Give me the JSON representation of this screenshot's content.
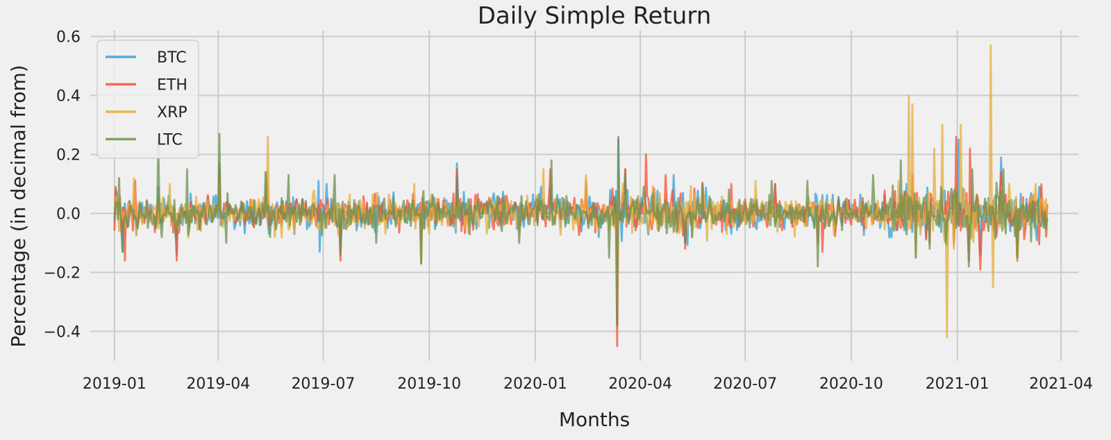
{
  "chart_data": {
    "type": "line",
    "title": "Daily Simple Return",
    "xlabel": "Months",
    "ylabel": "Percentage (in decimal from)",
    "xlim": [
      "2018-12-11",
      "2021-04-16"
    ],
    "ylim": [
      -0.5,
      0.62
    ],
    "x_ticks": [
      "2019-01",
      "2019-04",
      "2019-07",
      "2019-10",
      "2020-01",
      "2020-04",
      "2020-07",
      "2020-10",
      "2021-01",
      "2021-04"
    ],
    "y_ticks": [
      -0.4,
      -0.2,
      0.0,
      0.2,
      0.4,
      0.6
    ],
    "y_tick_labels": [
      "−0.4",
      "−0.2",
      "0.0",
      "0.2",
      "0.4",
      "0.6"
    ],
    "x_range": [
      "2019-01-01",
      "2021-03-20"
    ],
    "grid": true,
    "legend_position": "top-left",
    "series": [
      {
        "name": "BTC",
        "color": "#30a2da",
        "points": [
          [
            "2019-01-02",
            0.08
          ],
          [
            "2019-01-08",
            -0.13
          ],
          [
            "2019-02-08",
            0.09
          ],
          [
            "2019-02-24",
            -0.14
          ],
          [
            "2019-04-02",
            0.17
          ],
          [
            "2019-05-13",
            0.12
          ],
          [
            "2019-06-27",
            0.11
          ],
          [
            "2019-06-28",
            -0.13
          ],
          [
            "2019-07-04",
            0.1
          ],
          [
            "2019-07-16",
            -0.14
          ],
          [
            "2019-09-24",
            -0.16
          ],
          [
            "2019-10-25",
            0.17
          ],
          [
            "2020-01-06",
            0.09
          ],
          [
            "2020-01-14",
            0.09
          ],
          [
            "2020-03-12",
            -0.38
          ],
          [
            "2020-03-13",
            0.25
          ],
          [
            "2020-03-19",
            0.15
          ],
          [
            "2020-04-30",
            0.13
          ],
          [
            "2020-05-10",
            -0.1
          ],
          [
            "2020-07-27",
            0.1
          ],
          [
            "2020-11-18",
            0.1
          ],
          [
            "2021-01-02",
            0.25
          ],
          [
            "2021-01-21",
            -0.14
          ],
          [
            "2021-02-08",
            0.19
          ],
          [
            "2021-02-22",
            -0.16
          ],
          [
            "2021-03-13",
            0.09
          ]
        ]
      },
      {
        "name": "ETH",
        "color": "#fc4f30",
        "points": [
          [
            "2019-01-02",
            0.09
          ],
          [
            "2019-01-10",
            -0.16
          ],
          [
            "2019-01-19",
            0.11
          ],
          [
            "2019-02-24",
            -0.16
          ],
          [
            "2019-04-02",
            0.15
          ],
          [
            "2019-05-13",
            0.14
          ],
          [
            "2019-07-16",
            -0.16
          ],
          [
            "2019-09-24",
            -0.17
          ],
          [
            "2019-10-25",
            0.15
          ],
          [
            "2020-01-14",
            0.15
          ],
          [
            "2020-02-14",
            0.11
          ],
          [
            "2020-03-12",
            -0.45
          ],
          [
            "2020-03-19",
            0.15
          ],
          [
            "2020-04-06",
            0.2
          ],
          [
            "2020-04-23",
            0.13
          ],
          [
            "2020-05-10",
            -0.12
          ],
          [
            "2020-06-19",
            0.1
          ],
          [
            "2020-07-27",
            0.1
          ],
          [
            "2020-09-02",
            -0.1
          ],
          [
            "2020-09-06",
            -0.13
          ],
          [
            "2020-11-23",
            0.13
          ],
          [
            "2020-12-31",
            0.26
          ],
          [
            "2021-01-11",
            -0.16
          ],
          [
            "2021-01-12",
            0.22
          ],
          [
            "2021-01-21",
            -0.19
          ],
          [
            "2021-02-08",
            0.14
          ],
          [
            "2021-02-22",
            -0.16
          ]
        ]
      },
      {
        "name": "XRP",
        "color": "#e5ae38",
        "points": [
          [
            "2019-01-02",
            0.05
          ],
          [
            "2019-01-18",
            0.12
          ],
          [
            "2019-02-18",
            0.1
          ],
          [
            "2019-04-02",
            0.1
          ],
          [
            "2019-05-14",
            0.26
          ],
          [
            "2019-05-20",
            -0.08
          ],
          [
            "2019-06-26",
            -0.05
          ],
          [
            "2019-09-18",
            0.1
          ],
          [
            "2019-09-24",
            -0.17
          ],
          [
            "2020-01-08",
            0.15
          ],
          [
            "2020-02-14",
            0.13
          ],
          [
            "2020-03-12",
            -0.3
          ],
          [
            "2020-03-13",
            0.12
          ],
          [
            "2020-07-10",
            0.11
          ],
          [
            "2020-11-20",
            0.4
          ],
          [
            "2020-11-23",
            0.37
          ],
          [
            "2020-11-26",
            -0.15
          ],
          [
            "2020-12-12",
            0.22
          ],
          [
            "2020-12-19",
            0.3
          ],
          [
            "2020-12-23",
            -0.42
          ],
          [
            "2020-12-29",
            -0.12
          ],
          [
            "2021-01-04",
            0.3
          ],
          [
            "2021-01-30",
            0.57
          ],
          [
            "2021-02-01",
            -0.25
          ],
          [
            "2021-02-15",
            0.1
          ],
          [
            "2021-02-22",
            -0.16
          ]
        ]
      },
      {
        "name": "LTC",
        "color": "#6d904f",
        "points": [
          [
            "2019-01-02",
            0.04
          ],
          [
            "2019-01-05",
            0.12
          ],
          [
            "2019-01-08",
            -0.13
          ],
          [
            "2019-02-08",
            0.25
          ],
          [
            "2019-02-11",
            -0.08
          ],
          [
            "2019-03-05",
            0.15
          ],
          [
            "2019-04-02",
            0.27
          ],
          [
            "2019-04-08",
            -0.1
          ],
          [
            "2019-05-12",
            0.14
          ],
          [
            "2019-05-16",
            -0.08
          ],
          [
            "2019-06-01",
            0.13
          ],
          [
            "2019-07-11",
            0.13
          ],
          [
            "2019-07-16",
            -0.13
          ],
          [
            "2019-08-16",
            -0.1
          ],
          [
            "2019-09-24",
            -0.17
          ],
          [
            "2019-10-25",
            0.12
          ],
          [
            "2019-12-18",
            -0.1
          ],
          [
            "2020-01-15",
            0.18
          ],
          [
            "2020-03-05",
            -0.15
          ],
          [
            "2020-03-12",
            -0.38
          ],
          [
            "2020-03-13",
            0.26
          ],
          [
            "2020-03-19",
            0.13
          ],
          [
            "2020-05-10",
            -0.1
          ],
          [
            "2020-07-24",
            0.11
          ],
          [
            "2020-08-24",
            0.11
          ],
          [
            "2020-09-02",
            -0.18
          ],
          [
            "2020-10-20",
            0.13
          ],
          [
            "2020-11-13",
            0.18
          ],
          [
            "2020-11-26",
            -0.15
          ],
          [
            "2021-01-11",
            -0.18
          ],
          [
            "2021-01-14",
            0.15
          ],
          [
            "2021-02-10",
            0.15
          ],
          [
            "2021-02-22",
            -0.15
          ]
        ]
      }
    ]
  }
}
